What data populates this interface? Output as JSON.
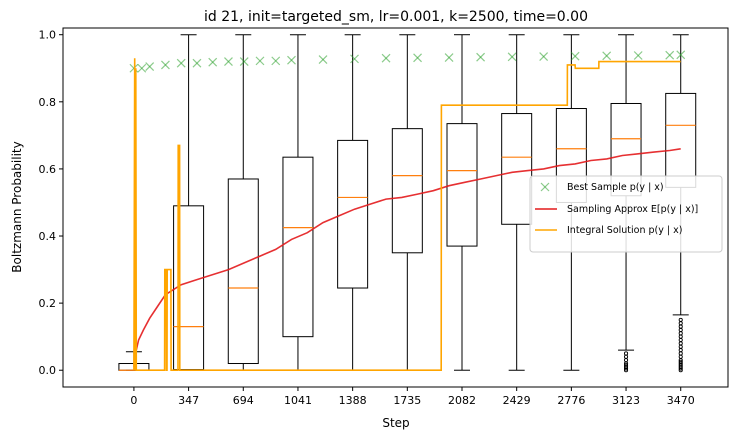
{
  "chart_data": {
    "type": "box",
    "title": "id 21, init=targeted_sm, lr=0.001, k=2500, time=0.00",
    "xlabel": "Step",
    "ylabel": "Boltzmann Probability",
    "xlim": [
      -450,
      3770
    ],
    "ylim": [
      -0.05,
      1.02
    ],
    "yticks": [
      0.0,
      0.2,
      0.4,
      0.6,
      0.8,
      1.0
    ],
    "ytick_labels": [
      "0.0",
      "0.2",
      "0.4",
      "0.6",
      "0.8",
      "1.0"
    ],
    "categories": [
      "0",
      "347",
      "694",
      "1041",
      "1388",
      "1735",
      "2082",
      "2429",
      "2776",
      "3123",
      "3470"
    ],
    "grid": false,
    "legend_position": "center-right",
    "boxes": [
      {
        "step": 0,
        "whisker_low": 0.0,
        "q1": 0.0,
        "median": 0.0,
        "q3": 0.02,
        "whisker_high": 0.055,
        "outliers": []
      },
      {
        "step": 347,
        "whisker_low": 0.0,
        "q1": 0.002,
        "median": 0.13,
        "q3": 0.49,
        "whisker_high": 1.0,
        "outliers": []
      },
      {
        "step": 694,
        "whisker_low": 0.0,
        "q1": 0.02,
        "median": 0.245,
        "q3": 0.57,
        "whisker_high": 1.0,
        "outliers": []
      },
      {
        "step": 1041,
        "whisker_low": 0.0,
        "q1": 0.1,
        "median": 0.425,
        "q3": 0.635,
        "whisker_high": 1.0,
        "outliers": []
      },
      {
        "step": 1388,
        "whisker_low": 0.0,
        "q1": 0.245,
        "median": 0.515,
        "q3": 0.685,
        "whisker_high": 1.0,
        "outliers": []
      },
      {
        "step": 1735,
        "whisker_low": 0.0,
        "q1": 0.35,
        "median": 0.58,
        "q3": 0.72,
        "whisker_high": 1.0,
        "outliers": []
      },
      {
        "step": 2082,
        "whisker_low": 0.0,
        "q1": 0.37,
        "median": 0.595,
        "q3": 0.735,
        "whisker_high": 1.0,
        "outliers": []
      },
      {
        "step": 2429,
        "whisker_low": 0.0,
        "q1": 0.435,
        "median": 0.635,
        "q3": 0.765,
        "whisker_high": 1.0,
        "outliers": []
      },
      {
        "step": 2776,
        "whisker_low": 0.0,
        "q1": 0.5,
        "median": 0.66,
        "q3": 0.78,
        "whisker_high": 1.0,
        "outliers": []
      },
      {
        "step": 3123,
        "whisker_low": 0.06,
        "q1": 0.52,
        "median": 0.69,
        "q3": 0.795,
        "whisker_high": 1.0,
        "outliers": [
          0.0,
          0.005,
          0.01,
          0.015,
          0.02,
          0.03,
          0.04,
          0.05
        ]
      },
      {
        "step": 3470,
        "whisker_low": 0.165,
        "q1": 0.545,
        "median": 0.73,
        "q3": 0.825,
        "whisker_high": 1.0,
        "outliers": [
          0.0,
          0.005,
          0.01,
          0.015,
          0.02,
          0.025,
          0.03,
          0.04,
          0.05,
          0.06,
          0.07,
          0.08,
          0.09,
          0.1,
          0.11,
          0.12,
          0.13,
          0.14,
          0.15
        ]
      }
    ],
    "series": [
      {
        "name": "Best Sample $p(y \\mid x)$",
        "legend_text": "Best Sample p(y | x)",
        "kind": "scatter",
        "marker": "x",
        "color": "#2ca02c",
        "x": [
          0,
          50,
          100,
          200,
          300,
          400,
          500,
          600,
          700,
          800,
          900,
          1000,
          1200,
          1400,
          1600,
          1800,
          2000,
          2200,
          2400,
          2600,
          2800,
          3000,
          3200,
          3400,
          3470
        ],
        "y": [
          0.9,
          0.9,
          0.905,
          0.91,
          0.915,
          0.915,
          0.918,
          0.92,
          0.92,
          0.922,
          0.922,
          0.924,
          0.926,
          0.928,
          0.93,
          0.931,
          0.932,
          0.933,
          0.934,
          0.935,
          0.936,
          0.937,
          0.938,
          0.939,
          0.94
        ]
      },
      {
        "name": "Sampling Approx $E[p(y \\mid x)]$",
        "legend_text": "Sampling Approx E[p(y | x)]",
        "kind": "line",
        "color": "#e31a1c",
        "x": [
          0,
          10,
          30,
          60,
          100,
          150,
          200,
          300,
          400,
          500,
          600,
          700,
          800,
          900,
          1000,
          1100,
          1200,
          1300,
          1400,
          1500,
          1600,
          1700,
          1800,
          1900,
          2000,
          2100,
          2200,
          2300,
          2400,
          2500,
          2600,
          2700,
          2800,
          2900,
          3000,
          3100,
          3200,
          3300,
          3400,
          3470
        ],
        "y": [
          0.01,
          0.05,
          0.09,
          0.12,
          0.155,
          0.19,
          0.225,
          0.255,
          0.27,
          0.285,
          0.3,
          0.32,
          0.34,
          0.36,
          0.39,
          0.41,
          0.44,
          0.46,
          0.48,
          0.495,
          0.51,
          0.515,
          0.525,
          0.535,
          0.55,
          0.56,
          0.57,
          0.58,
          0.59,
          0.595,
          0.6,
          0.61,
          0.615,
          0.625,
          0.63,
          0.64,
          0.645,
          0.65,
          0.655,
          0.66
        ]
      },
      {
        "name": "Integral Solution $p(y \\mid x)$",
        "legend_text": "Integral Solution p(y | x)",
        "kind": "step",
        "color": "#ffa500",
        "x": [
          0,
          5,
          10,
          12,
          15,
          20,
          195,
          196,
          205,
          206,
          210,
          211,
          235,
          236,
          245,
          246,
          280,
          281,
          290,
          291,
          1950,
          1951,
          2750,
          2751,
          2800,
          2801,
          2950,
          2951,
          3470
        ],
        "y": [
          0.0,
          0.93,
          0.0,
          0.9,
          0.0,
          0.0,
          0.0,
          0.3,
          0.3,
          0.0,
          0.0,
          0.3,
          0.3,
          0.0,
          0.0,
          0.0,
          0.0,
          0.67,
          0.67,
          0.0,
          0.0,
          0.79,
          0.79,
          0.91,
          0.91,
          0.9,
          0.9,
          0.92,
          0.92
        ]
      }
    ]
  }
}
